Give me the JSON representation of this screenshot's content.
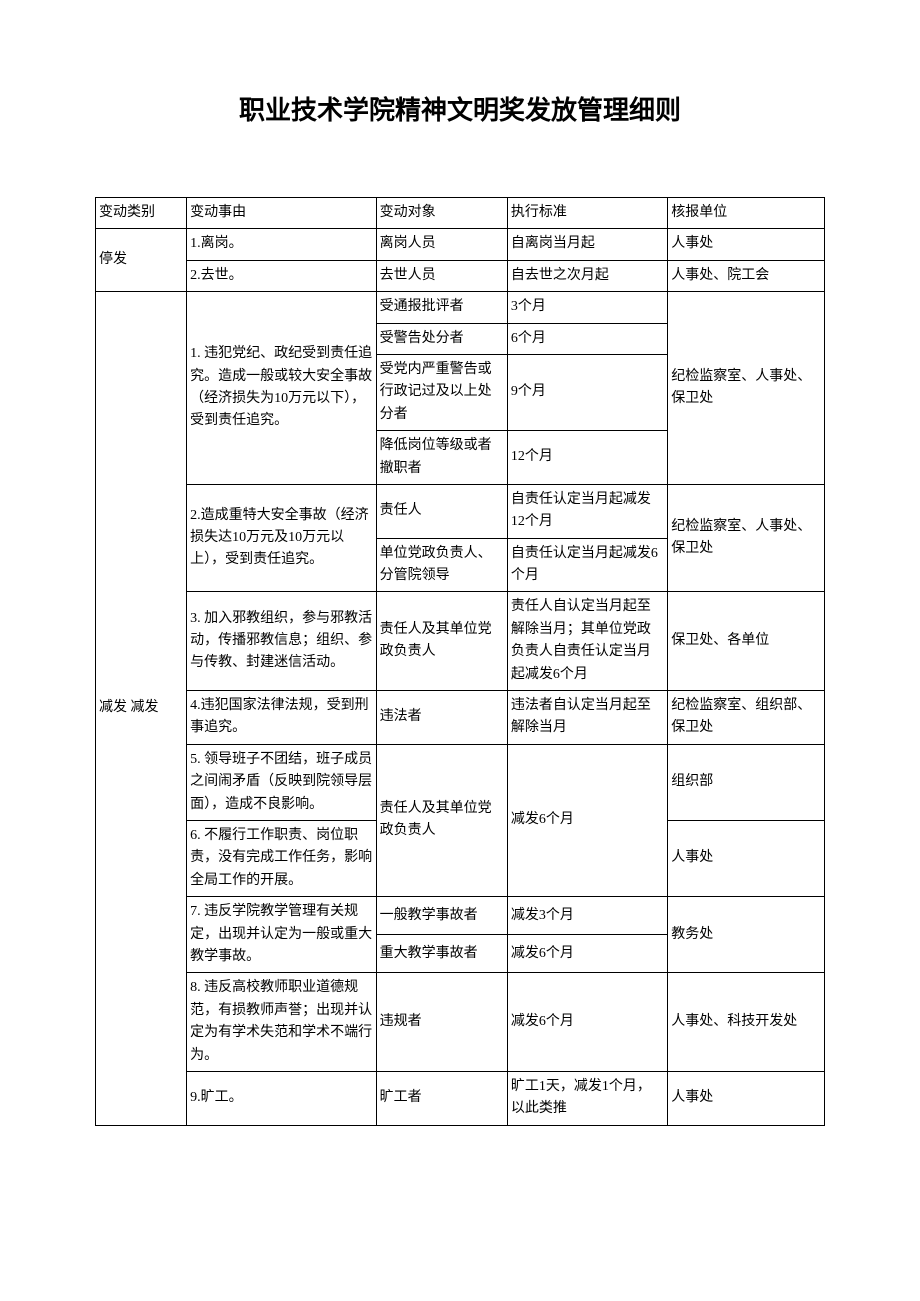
{
  "title": "职业技术学院精神文明奖发放管理细则",
  "headers": {
    "c1": "变动类别",
    "c2": "变动事由",
    "c3": "变动对象",
    "c4": "执行标准",
    "c5": "核报单位"
  },
  "cat_stop": "停发",
  "cat_reduce": "减发  减发",
  "r1": {
    "reason": "1.离岗。",
    "target": "离岗人员",
    "std": "自离岗当月起",
    "unit": "人事处"
  },
  "r2": {
    "reason": "2.去世。",
    "target": "去世人员",
    "std": "自去世之次月起",
    "unit": "人事处、院工会"
  },
  "r3": {
    "reason": "1. 违犯党纪、政纪受到责任追究。造成一般或较大安全事故（经济损失为10万元以下），受到责任追究。",
    "t1": "受通报批评者",
    "s1": "3个月",
    "t2": "受警告处分者",
    "s2": "6个月",
    "t3": "受党内严重警告或行政记过及以上处分者",
    "s3": "9个月",
    "t4": "降低岗位等级或者撤职者",
    "s4": "12个月",
    "unit": "纪检监察室、人事处、保卫处"
  },
  "r4": {
    "reason": "2.造成重特大安全事故（经济损失达10万元及10万元以上），受到责任追究。",
    "t1": "责任人",
    "s1": "自责任认定当月起减发12个月",
    "t2": "单位党政负责人、分管院领导",
    "s2": "自责任认定当月起减发6个月",
    "unit": "纪检监察室、人事处、保卫处"
  },
  "r5": {
    "reason": "3. 加入邪教组织，参与邪教活动，传播邪教信息；组织、参与传教、封建迷信活动。",
    "target": "责任人及其单位党政负责人",
    "std": "责任人自认定当月起至解除当月；其单位党政负责人自责任认定当月起减发6个月",
    "unit": "保卫处、各单位"
  },
  "r6": {
    "reason": "4.违犯国家法律法规，受到刑事追究。",
    "target": "违法者",
    "std": "违法者自认定当月起至解除当月",
    "unit": "纪检监察室、组织部、保卫处"
  },
  "r7": {
    "reason": "5. 领导班子不团结，班子成员之间闹矛盾（反映到院领导层面），造成不良影响。",
    "unit": "组织部"
  },
  "r8": {
    "reason": "6. 不履行工作职责、岗位职责，没有完成工作任务，影响全局工作的开展。",
    "unit": "人事处"
  },
  "r7_8_target": "责任人及其单位党政负责人",
  "r7_8_std": "减发6个月",
  "r9": {
    "reason": "7. 违反学院教学管理有关规定，出现并认定为一般或重大教学事故。",
    "t1": "一般教学事故者",
    "s1": "减发3个月",
    "t2": "重大教学事故者",
    "s2": "减发6个月",
    "unit": "教务处"
  },
  "r10": {
    "reason": "8. 违反高校教师职业道德规范，有损教师声誉；出现并认定为有学术失范和学术不端行为。",
    "target": "违规者",
    "std": "减发6个月",
    "unit": "人事处、科技开发处"
  },
  "r11": {
    "reason": "9.旷工。",
    "target": "旷工者",
    "std": "旷工1天，减发1个月，以此类推",
    "unit": "人事处"
  }
}
